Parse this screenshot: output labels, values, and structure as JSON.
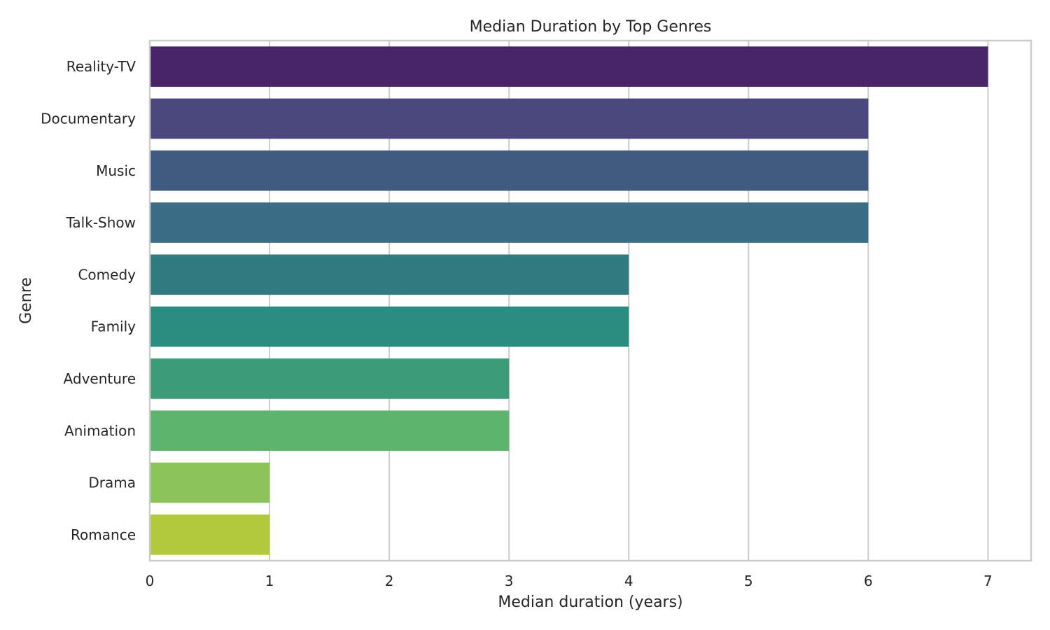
{
  "chart_data": {
    "type": "bar",
    "orientation": "horizontal",
    "title": "Median Duration by Top Genres",
    "xlabel": "Median duration (years)",
    "ylabel": "Genre",
    "categories": [
      "Reality-TV",
      "Documentary",
      "Music",
      "Talk-Show",
      "Comedy",
      "Family",
      "Adventure",
      "Animation",
      "Drama",
      "Romance"
    ],
    "values": [
      7,
      6,
      6,
      6,
      4,
      4,
      3,
      3,
      1,
      1
    ],
    "colors": [
      "#482468",
      "#49477b",
      "#405b82",
      "#3b6d84",
      "#317b80",
      "#2a8d7f",
      "#3a9d78",
      "#5db46d",
      "#8bc25a",
      "#b1c83c"
    ],
    "xlim": [
      0,
      7.36
    ],
    "xticks": [
      0,
      1,
      2,
      3,
      4,
      5,
      6,
      7
    ],
    "xtick_labels": [
      "0",
      "1",
      "2",
      "3",
      "4",
      "5",
      "6",
      "7"
    ],
    "grid": true,
    "grid_axis": "x",
    "legend": "none"
  }
}
